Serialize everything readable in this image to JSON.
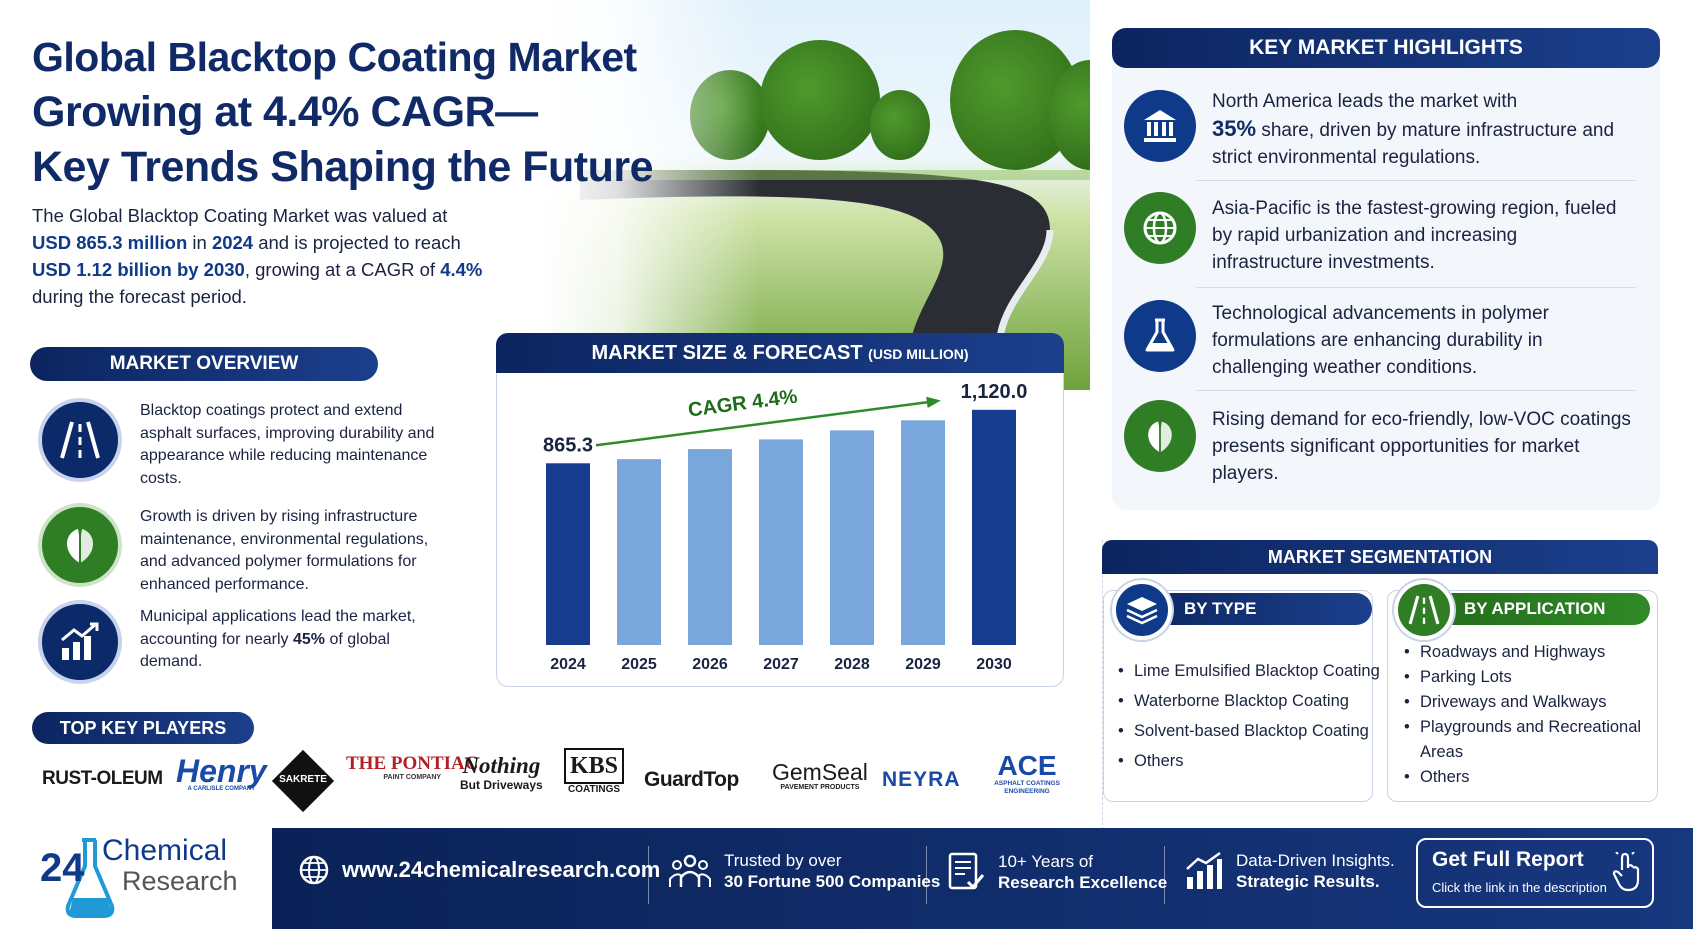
{
  "title": {
    "line1": "Global Blacktop Coating Market",
    "line2": "Growing at 4.4% CAGR—",
    "line3": "Key Trends Shaping the Future"
  },
  "intro": {
    "p1": "The Global Blacktop Coating Market was valued at",
    "v1": "USD 865.3 million",
    "p2": " in ",
    "v2": "2024",
    "p3": " and is projected to reach",
    "v3": "USD 1.12 billion by 2030",
    "p4": ", growing at a CAGR of ",
    "v4": "4.4%",
    "p5": "during the forecast period."
  },
  "overview": {
    "heading": "MARKET OVERVIEW",
    "items": [
      {
        "icon": "road-icon",
        "text": "Blacktop coatings protect and extend asphalt surfaces, improving durability and appearance while reducing maintenance costs."
      },
      {
        "icon": "leaf-icon",
        "text": "Growth is driven by rising infrastructure maintenance, environmental regulations, and advanced polymer formulations for enhanced performance."
      },
      {
        "icon": "growth-chart-icon",
        "text_a": "Municipal applications lead the market, accounting for nearly ",
        "text_b": "45%",
        "text_c": " of global demand."
      }
    ]
  },
  "chart_data": {
    "type": "bar",
    "title": "MARKET SIZE & FORECAST",
    "unit": "(USD MILLION)",
    "categories": [
      "2024",
      "2025",
      "2026",
      "2027",
      "2028",
      "2029",
      "2030"
    ],
    "values": [
      865.3,
      885,
      933,
      979,
      1022,
      1070,
      1120.0
    ],
    "labels": {
      "first": "865.3",
      "last": "1,120.0"
    },
    "annotation": "CAGR 4.4%",
    "ylim": [
      0,
      1200
    ],
    "colors": {
      "highlight": "#163d8f",
      "forecast": "#7aa7db"
    }
  },
  "key_players": {
    "heading": "TOP KEY PLAYERS",
    "logos": [
      "RUST-OLEUM",
      "Henry",
      "SAKRETE",
      "THE PONTIAC",
      "Nothing",
      "KBS",
      "GuardTop",
      "GemSeal",
      "NEYRA",
      "ACE"
    ],
    "logo_subs": {
      "henry": "A CARLISLE COMPANY",
      "pontiac": "PAINT COMPANY",
      "nothing": "But Driveways",
      "kbs": "COATINGS",
      "gemseal": "PAVEMENT PRODUCTS",
      "ace": "ASPHALT COATINGS ENGINEERING"
    }
  },
  "highlights": {
    "heading": "KEY MARKET HIGHLIGHTS",
    "items": [
      {
        "icon": "bank-icon",
        "a": "North America leads the market with",
        "b": "35%",
        "c": " share, driven by mature infrastructure and strict environmental regulations."
      },
      {
        "icon": "globe-icon",
        "a": "Asia-Pacific is the fastest-growing region, fueled by rapid urbanization and increasing infrastructure investments."
      },
      {
        "icon": "flask-icon",
        "a": "Technological advancements in polymer formulations are enhancing durability in challenging weather conditions."
      },
      {
        "icon": "leaf-icon",
        "a": "Rising demand for eco-friendly, low-VOC coatings presents significant opportunities for market players."
      }
    ]
  },
  "segmentation": {
    "heading": "MARKET SEGMENTATION",
    "by_type": {
      "label": "BY TYPE",
      "items": [
        "Lime Emulsified Blacktop Coating",
        "Waterborne Blacktop Coating",
        "Solvent-based Blacktop Coating",
        "Others"
      ]
    },
    "by_application": {
      "label": "BY APPLICATION",
      "items": [
        "Roadways and Highways",
        "Parking Lots",
        "Driveways and Walkways",
        "Playgrounds and Recreational Areas",
        "Others"
      ]
    }
  },
  "footer": {
    "brand_num": "24",
    "brand_line1": "Chemical",
    "brand_line2": "Research",
    "website": "www.24chemicalresearch.com",
    "trusted_1": "Trusted by over",
    "trusted_2": "30 Fortune 500 Companies",
    "years_1": "10+ Years of",
    "years_2": "Research Excellence",
    "data_1": "Data-Driven Insights.",
    "data_2": "Strategic Results.",
    "cta_title": "Get Full Report",
    "cta_sub": "Click the link in the description"
  }
}
